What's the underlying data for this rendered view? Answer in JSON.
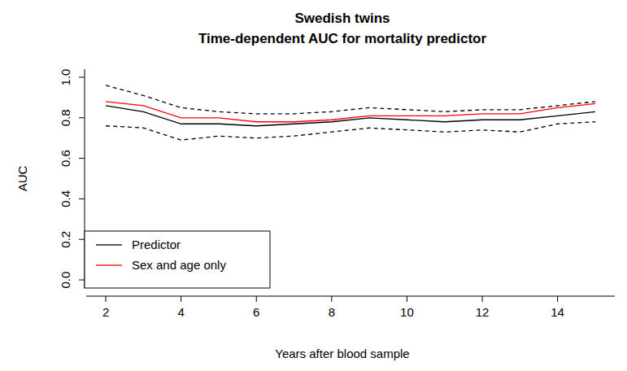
{
  "chart_data": {
    "type": "line",
    "title": "Swedish twins",
    "subtitle": "Time-dependent AUC for mortality predictor",
    "x_label": "Years after blood sample",
    "y_label": "AUC",
    "x": [
      2,
      3,
      4,
      5,
      6,
      7,
      8,
      9,
      10,
      11,
      12,
      13,
      14,
      15
    ],
    "series": [
      {
        "name": "Predictor",
        "color": "#000000",
        "line_style": "solid",
        "values": [
          0.86,
          0.83,
          0.77,
          0.77,
          0.76,
          0.77,
          0.78,
          0.8,
          0.79,
          0.78,
          0.79,
          0.79,
          0.81,
          0.83
        ]
      },
      {
        "name": "Sex and age only",
        "color": "#ff0000",
        "line_style": "solid",
        "values": [
          0.88,
          0.86,
          0.8,
          0.8,
          0.78,
          0.78,
          0.79,
          0.81,
          0.81,
          0.81,
          0.82,
          0.82,
          0.85,
          0.87
        ]
      },
      {
        "color": "#000000",
        "line_style": "dashed",
        "values": [
          0.96,
          0.91,
          0.85,
          0.83,
          0.82,
          0.82,
          0.83,
          0.85,
          0.84,
          0.83,
          0.84,
          0.84,
          0.86,
          0.88
        ]
      },
      {
        "color": "#000000",
        "line_style": "dashed",
        "values": [
          0.76,
          0.75,
          0.69,
          0.71,
          0.7,
          0.71,
          0.73,
          0.75,
          0.74,
          0.73,
          0.74,
          0.73,
          0.77,
          0.78
        ]
      }
    ],
    "xlim": [
      1.48,
      15.52
    ],
    "ylim": [
      -0.04,
      1.04
    ],
    "xticks": [
      2,
      4,
      6,
      8,
      10,
      12,
      14
    ],
    "yticks": [
      {
        "value": 0,
        "label": "0.0"
      },
      {
        "value": 0.2,
        "label": "0.2"
      },
      {
        "value": 0.4,
        "label": "0.4"
      },
      {
        "value": 0.6,
        "label": "0.6"
      },
      {
        "value": 0.8,
        "label": "0.8"
      },
      {
        "value": 1,
        "label": "1.0"
      }
    ],
    "grid": false,
    "legend": "bottomleft"
  }
}
